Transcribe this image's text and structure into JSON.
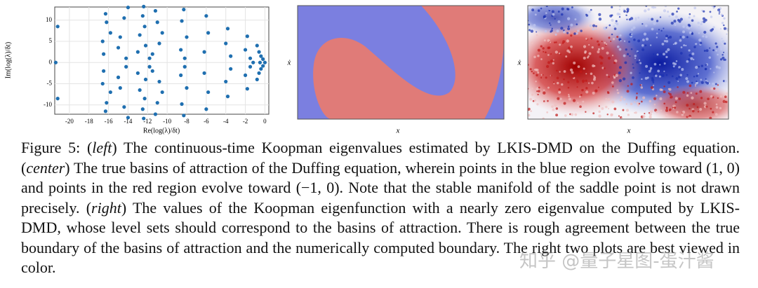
{
  "figure": {
    "left": {
      "type": "scatter",
      "xlabel": "Re(log(λ)/δt)",
      "ylabel": "Im(log(λ)/δt)",
      "color": "#1f6fb0",
      "xlim": [
        -21.5,
        0.4
      ],
      "ylim": [
        -12.2,
        13.1
      ],
      "xticks": [
        -20,
        -18,
        -16,
        -14,
        -12,
        -10,
        -8,
        -6,
        -4,
        -2,
        0
      ],
      "yticks": [
        -10,
        -5,
        0,
        5,
        10
      ],
      "grid": true,
      "x": [
        -21.2,
        -21.2,
        -16.3,
        -16.3,
        -16.2,
        -16.2,
        -16.6,
        -16.6,
        -16.5,
        -16.5,
        -15.8,
        -15.8,
        -14,
        -14,
        -14.4,
        -14.4,
        -14.8,
        -14.8,
        -15,
        -15,
        -14.2,
        -14.2,
        -12.4,
        -12.4,
        -12.5,
        -12.5,
        -12.3,
        -12.3,
        -12.8,
        -12.8,
        -12.2,
        -12.2,
        -13,
        -13,
        -11.8,
        -11.8,
        -11.2,
        -11.2,
        -11,
        -11,
        -10.5,
        -10.5,
        -10.8,
        -10.8,
        -11.5,
        -11.5,
        -8.3,
        -8.3,
        -8.5,
        -8.5,
        -8,
        -8,
        -8.6,
        -8.6,
        -8.2,
        -8.2,
        -6,
        -6,
        -5.8,
        -5.8,
        -6.2,
        -6.2,
        -3.8,
        -3.8,
        -4,
        -4,
        -3.5,
        -3.5,
        -1.8,
        -1.8,
        -2,
        -2,
        -1.5,
        -1.5,
        -0.8,
        -0.8,
        -0.6,
        -0.6,
        -0.4,
        -0.4,
        -0.2,
        -0.2,
        0,
        -0.5,
        -1.2,
        -21.4
      ],
      "y": [
        8.5,
        -8.5,
        11.5,
        -11.5,
        9.5,
        -9.5,
        5,
        -5,
        2,
        -2,
        7,
        -7,
        13,
        -13,
        10.5,
        -10.5,
        6,
        -6,
        3.5,
        -3.5,
        1,
        -1,
        13.2,
        -13.2,
        11,
        -11,
        8.5,
        -8.5,
        6.5,
        -6.5,
        4,
        -4,
        2.5,
        -2.5,
        1,
        -1,
        12.2,
        -12.2,
        9.5,
        -9.5,
        7,
        -7,
        4.5,
        -4.5,
        2,
        -2,
        12.5,
        -12.5,
        9.8,
        -9.8,
        6,
        -6,
        3,
        -3,
        1,
        -1,
        11,
        -11,
        7,
        -7,
        2.5,
        -2.5,
        8,
        -8,
        4.5,
        -4.5,
        1.5,
        -1.5,
        6.2,
        -6.2,
        3,
        -3,
        1,
        -1,
        4,
        -4,
        2.5,
        -2.5,
        1.5,
        -1.5,
        0.8,
        -0.8,
        0,
        0,
        0,
        0
      ]
    },
    "center": {
      "xlabel": "x",
      "ylabel": "ẋ"
    },
    "right": {
      "xlabel": "x",
      "ylabel": "ẋ"
    }
  },
  "caption": {
    "parts": [
      "Figure 5: (",
      "left",
      ") The continuous-time Koopman eigenvalues estimated by LKIS-DMD on the Duffing equation. (",
      "center",
      ") The true basins of attraction of the Duffing equation, wherein points in the blue region evolve toward (1, 0) and points in the red region evolve toward (−1, 0). Note that the stable manifold of the saddle point is not drawn precisely. (",
      "right",
      ") The values of the Koopman eigenfunction with a nearly zero eigenvalue computed by LKIS-DMD, whose level sets should correspond to the basins of attraction. There is rough agreement between the true boundary of the basins of attraction and the numerically computed boundary. The right two plots are best viewed in color."
    ]
  },
  "watermark": "知乎 @量子星图-蛋汁酱"
}
